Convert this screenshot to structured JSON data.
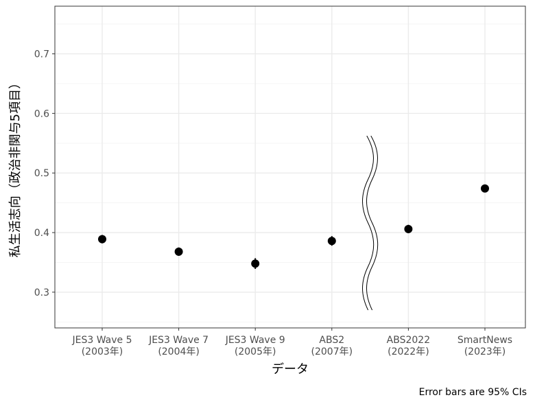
{
  "chart_data": {
    "type": "scatter",
    "title": "",
    "xlabel": "データ",
    "ylabel": "私生活志向（政治非関与5項目）",
    "caption": "Error bars are 95% CIs",
    "categories": [
      [
        "JES3 Wave 5",
        "(2003年)"
      ],
      [
        "JES3 Wave 7",
        "(2004年)"
      ],
      [
        "JES3 Wave 9",
        "(2005年)"
      ],
      [
        "ABS2",
        "(2007年)"
      ],
      [
        "ABS2022",
        "(2022年)"
      ],
      [
        "SmartNews",
        "(2023年)"
      ]
    ],
    "values": [
      0.389,
      0.368,
      0.348,
      0.386,
      0.406,
      0.474
    ],
    "ci_lower": [
      0.382,
      0.361,
      0.339,
      0.378,
      0.399,
      0.469
    ],
    "ci_upper": [
      0.396,
      0.375,
      0.357,
      0.394,
      0.413,
      0.479
    ],
    "yticks": [
      0.3,
      0.4,
      0.5,
      0.6,
      0.7
    ],
    "ylim": [
      0.24,
      0.78
    ],
    "grid": true,
    "break_between": [
      "ABS2",
      "ABS2022"
    ],
    "colors": {
      "point": "#000000",
      "grid_major": "#ebebeb",
      "grid_minor": "#f5f5f5",
      "panel_border": "#333333"
    }
  }
}
